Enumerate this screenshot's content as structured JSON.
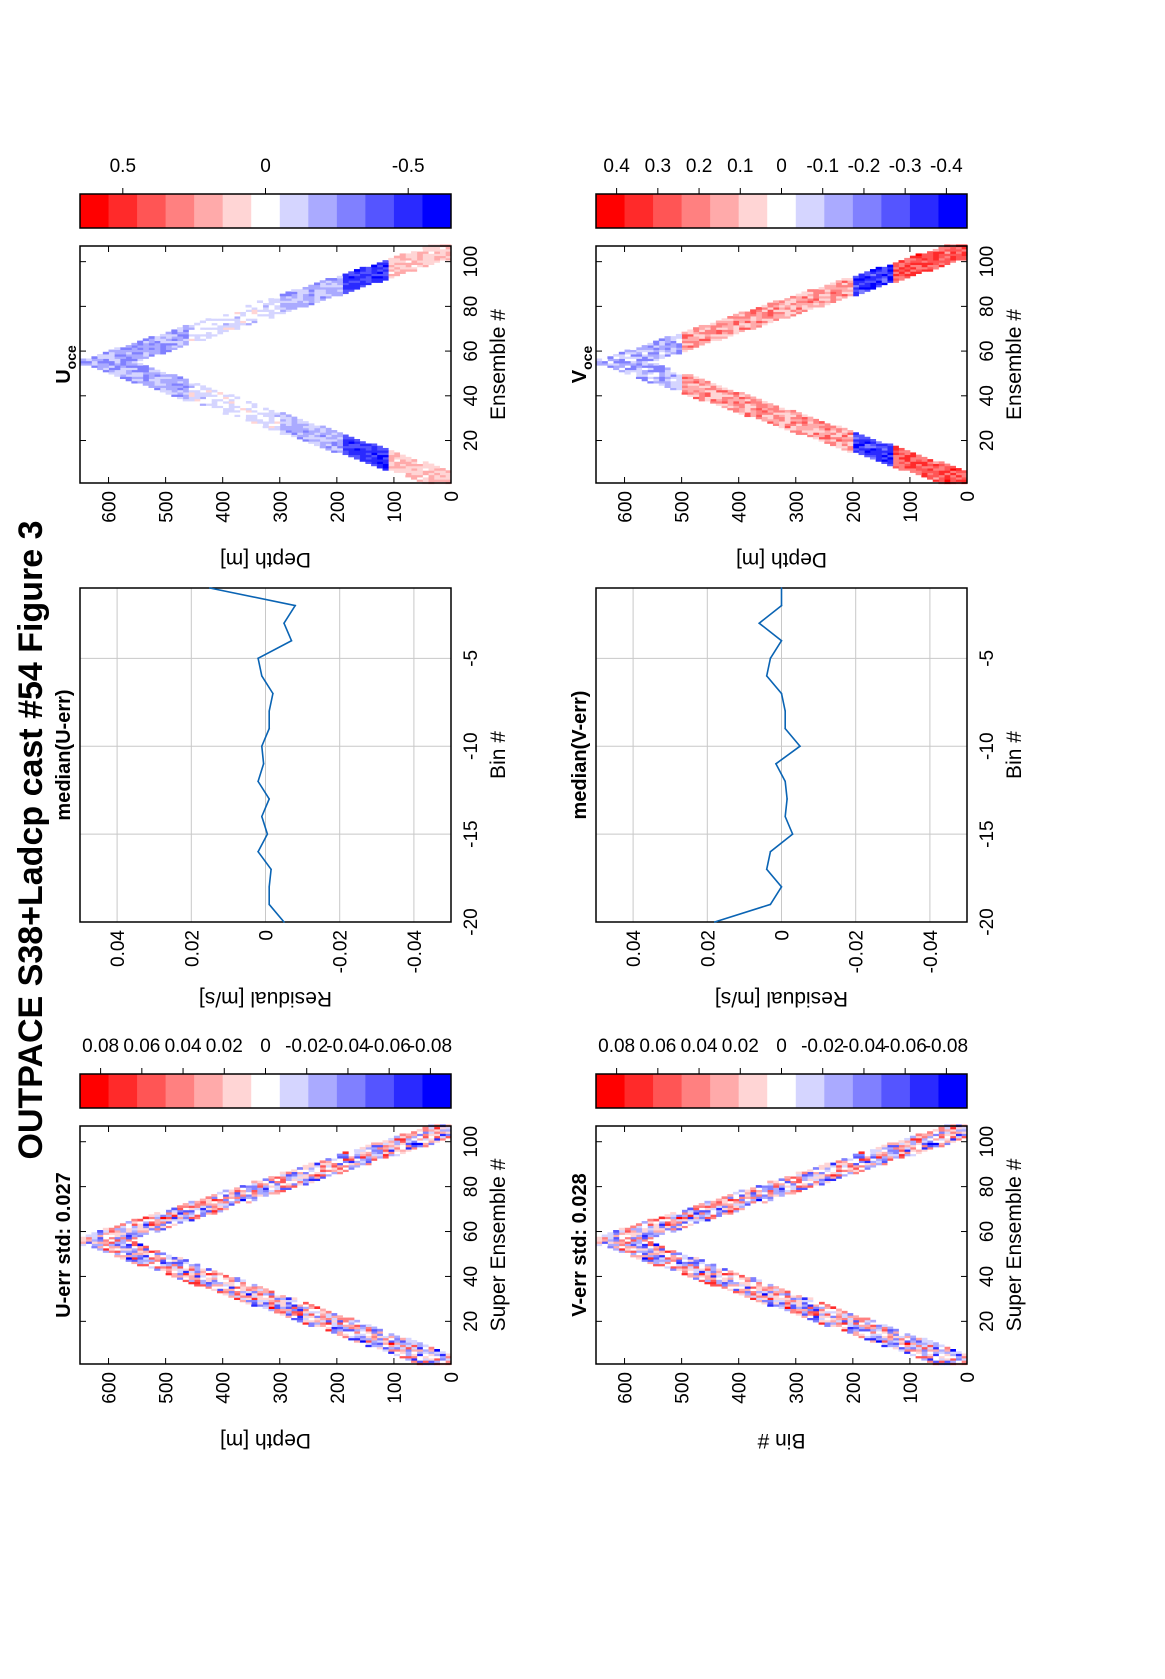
{
  "title": "OUTPACE S38+Ladcp cast #54  Figure 3",
  "colors": {
    "line": "#0a64b4",
    "grid": "#c8c8c8",
    "red": "#ff0000",
    "blue": "#0000ff"
  },
  "chart_data": [
    {
      "id": "u_err",
      "type": "heatmap",
      "title": "U-err std: 0.027",
      "xlabel": "Super Ensemble #",
      "ylabel": "Depth [m]",
      "xlim": [
        1,
        107
      ],
      "ylim": [
        0,
        650
      ],
      "xticks": [
        20,
        40,
        60,
        80,
        100
      ],
      "yticks": [
        0,
        100,
        200,
        300,
        400,
        500,
        600
      ],
      "pattern": {
        "bottom_depth": 640,
        "bottom_ensemble": 56,
        "band_half_width_ensembles": 9,
        "start_depth": 30,
        "end_depth": 10
      },
      "colorbar": {
        "clim": [
          -0.09,
          0.09
        ],
        "ticks": [
          "0.08",
          "0.06",
          "0.04",
          "0.02",
          "0",
          "-0.02",
          "-0.04",
          "-0.06",
          "-0.08"
        ]
      }
    },
    {
      "id": "u_res",
      "type": "line",
      "title": "median(U-err)",
      "xlabel": "Residual [m/s]",
      "ylabel": "Bin #",
      "xlim": [
        -0.05,
        0.05
      ],
      "ylim": [
        -1,
        -20
      ],
      "xticks": [
        "-0.04",
        "-0.02",
        "0",
        "0.02",
        "0.04"
      ],
      "yticks": [
        "-5",
        "-10",
        "-15",
        "-20"
      ],
      "x": [
        0.015,
        -0.008,
        -0.005,
        -0.007,
        0.002,
        0.001,
        -0.002,
        -0.001,
        -0.001,
        0.001,
        0.0005,
        0.002,
        -0.001,
        0.001,
        -0.0005,
        0.002,
        -0.0015,
        -0.001,
        -0.001,
        -0.005
      ],
      "y": [
        -1,
        -2,
        -3,
        -4,
        -5,
        -6,
        -7,
        -8,
        -9,
        -10,
        -11,
        -12,
        -13,
        -14,
        -15,
        -16,
        -17,
        -18,
        -19,
        -20
      ]
    },
    {
      "id": "u_oce",
      "type": "heatmap",
      "title": "U",
      "title_sub": "oce",
      "xlabel": "Ensemble #",
      "ylabel": "Depth [m]",
      "xlim": [
        1,
        107
      ],
      "ylim": [
        0,
        650
      ],
      "xticks": [
        20,
        40,
        60,
        80,
        100
      ],
      "yticks": [
        0,
        100,
        200,
        300,
        400,
        500,
        600
      ],
      "pattern": {
        "bottom_depth": 630,
        "bottom_ensemble": 55,
        "band_half_width_ensembles": 9,
        "start_depth": 20,
        "end_depth": 10
      },
      "colorbar": {
        "clim": [
          -0.65,
          0.65
        ],
        "ticks": [
          "0.5",
          "0",
          "-0.5"
        ]
      }
    },
    {
      "id": "v_err",
      "type": "heatmap",
      "title": "V-err std: 0.028",
      "xlabel": "Super Ensemble #",
      "ylabel": "Bin #",
      "xlim": [
        1,
        107
      ],
      "ylim": [
        0,
        650
      ],
      "xticks": [
        20,
        40,
        60,
        80,
        100
      ],
      "yticks": [
        0,
        100,
        200,
        300,
        400,
        500,
        600
      ],
      "pattern": {
        "bottom_depth": 640,
        "bottom_ensemble": 56,
        "band_half_width_ensembles": 9,
        "start_depth": 30,
        "end_depth": 10
      },
      "colorbar": {
        "clim": [
          -0.09,
          0.09
        ],
        "ticks": [
          "0.08",
          "0.06",
          "0.04",
          "0.02",
          "0",
          "-0.02",
          "-0.04",
          "-0.06",
          "-0.08"
        ]
      }
    },
    {
      "id": "v_res",
      "type": "line",
      "title": "median(V-err)",
      "xlabel": "Residual [m/s]",
      "ylabel": "Bin #",
      "xlim": [
        -0.05,
        0.05
      ],
      "ylim": [
        -1,
        -20
      ],
      "xticks": [
        "-0.04",
        "-0.02",
        "0",
        "0.02",
        "0.04"
      ],
      "yticks": [
        "-5",
        "-10",
        "-15",
        "-20"
      ],
      "x": [
        0,
        0,
        0.006,
        0,
        0.003,
        0.004,
        0,
        -0.001,
        -0.001,
        -0.005,
        0.0015,
        -0.001,
        -0.0015,
        -0.001,
        -0.003,
        0.003,
        0.004,
        0,
        0.003,
        0.018
      ],
      "y": [
        -1,
        -2,
        -3,
        -4,
        -5,
        -6,
        -7,
        -8,
        -9,
        -10,
        -11,
        -12,
        -13,
        -14,
        -15,
        -16,
        -17,
        -18,
        -19,
        -20
      ]
    },
    {
      "id": "v_oce",
      "type": "heatmap",
      "title": "V",
      "title_sub": "oce",
      "xlabel": "Ensemble #",
      "ylabel": "Depth [m]",
      "xlim": [
        1,
        107
      ],
      "ylim": [
        0,
        650
      ],
      "xticks": [
        20,
        40,
        60,
        80,
        100
      ],
      "yticks": [
        0,
        100,
        200,
        300,
        400,
        500,
        600
      ],
      "pattern": {
        "bottom_depth": 630,
        "bottom_ensemble": 55,
        "band_half_width_ensembles": 9,
        "start_depth": 20,
        "end_depth": 10
      },
      "colorbar": {
        "clim": [
          -0.45,
          0.45
        ],
        "ticks": [
          "0.4",
          "0.3",
          "0.2",
          "0.1",
          "0",
          "-0.1",
          "-0.2",
          "-0.3",
          "-0.4"
        ]
      }
    }
  ]
}
